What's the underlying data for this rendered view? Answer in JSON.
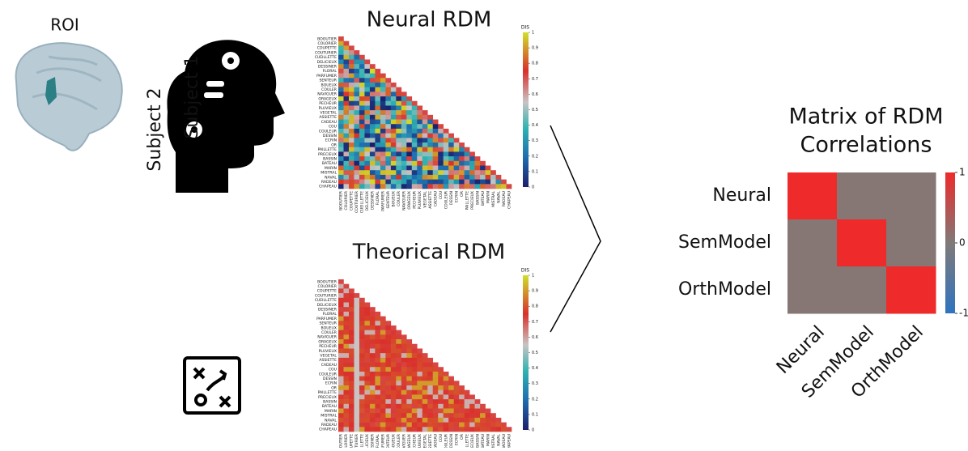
{
  "roi_label": "ROI",
  "subjects": [
    "Subject 1",
    "Subject 2"
  ],
  "words": [
    "BOOUTIER",
    "COLORIER",
    "COUPETTE",
    "COUTURIER",
    "CUEILLETTE",
    "DELICIEUX",
    "DESSINER",
    "FLORAL",
    "PARFUMER",
    "SENTEUR",
    "BOUEUX",
    "COULER",
    "NAVIGUER",
    "ORAGEUX",
    "PECHEUR",
    "PLUVIEUX",
    "VEGETAL",
    "ASSIETTE",
    "CADEAU",
    "COU",
    "COULEUR",
    "DESSIN",
    "ECRIN",
    "OR",
    "PAILLETTE",
    "PRECIEUX",
    "BASSIN",
    "BATEAU",
    "MARIN",
    "MISTRAL",
    "NAVAL",
    "RADEAU",
    "CHAPEAU"
  ],
  "rdms": [
    {
      "title": "Neural RDM",
      "colorbar_label": "DIS",
      "colorbar_ticks": [
        0,
        0.1,
        0.2,
        0.3,
        0.4,
        0.5,
        0.6,
        0.7,
        0.8,
        0.9,
        1
      ]
    },
    {
      "title": "Theorical RDM",
      "colorbar_label": "DIS",
      "colorbar_ticks": [
        0,
        0.1,
        0.2,
        0.3,
        0.4,
        0.5,
        0.6,
        0.7,
        0.8,
        0.9,
        1
      ]
    }
  ],
  "correlation": {
    "title_lines": [
      "Matrix of RDM",
      "Correlations"
    ],
    "labels": [
      "Neural",
      "SemModel",
      "OrthModel"
    ],
    "matrix": [
      [
        1,
        0.05,
        0.05
      ],
      [
        0.05,
        1,
        0.05
      ],
      [
        0.05,
        0.05,
        1
      ]
    ],
    "clim": [
      -1,
      1
    ],
    "colorbar_ticks": [
      1,
      0,
      -1
    ]
  }
}
